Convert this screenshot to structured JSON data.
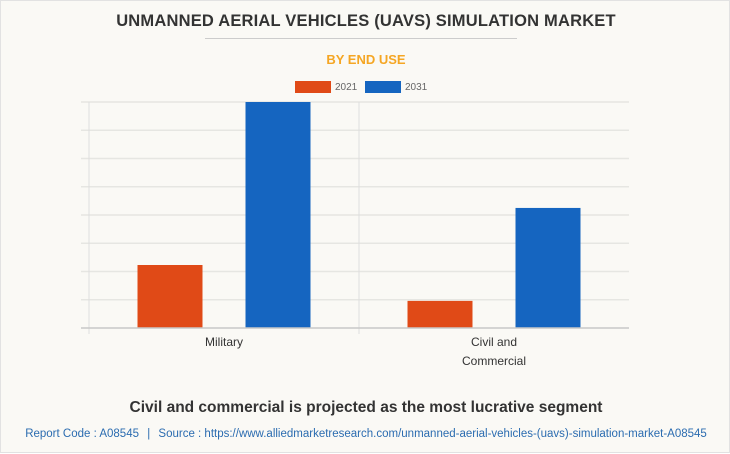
{
  "title": "UNMANNED AERIAL VEHICLES (UAVS) SIMULATION MARKET",
  "subtitle": "BY END USE",
  "insight": "Civil and commercial is projected as the most lucrative segment",
  "footer": {
    "report_code": "Report Code : A08545",
    "separator": "|",
    "source": "Source : https://www.alliedmarketresearch.com/unmanned-aerial-vehicles-(uavs)-simulation-market-A08545"
  },
  "colors": {
    "series_2021": "#e04a17",
    "series_2031": "#1565c0",
    "subtitle": "#f5a623"
  },
  "chart_data": {
    "type": "bar",
    "title": "UNMANNED AERIAL VEHICLES (UAVS) SIMULATION MARKET",
    "subtitle": "BY END USE",
    "xlabel": "",
    "ylabel": "",
    "categories": [
      {
        "label_lines": [
          "Military"
        ]
      },
      {
        "label_lines": [
          "Civil and",
          "Commercial"
        ]
      }
    ],
    "category_names": [
      "Military",
      "Civil and Commercial"
    ],
    "series": [
      {
        "name": "2021",
        "color": "#e04a17",
        "values": [
          2.23,
          0.96
        ]
      },
      {
        "name": "2031",
        "color": "#1565c0",
        "values": [
          8.0,
          4.25
        ]
      }
    ],
    "ylim": [
      0,
      8
    ],
    "y_gridlines": 8,
    "y_tick_labels_shown": false,
    "value_units": "relative (gridline units; no axis labels shown)",
    "grid": true,
    "legend": "top-center"
  }
}
